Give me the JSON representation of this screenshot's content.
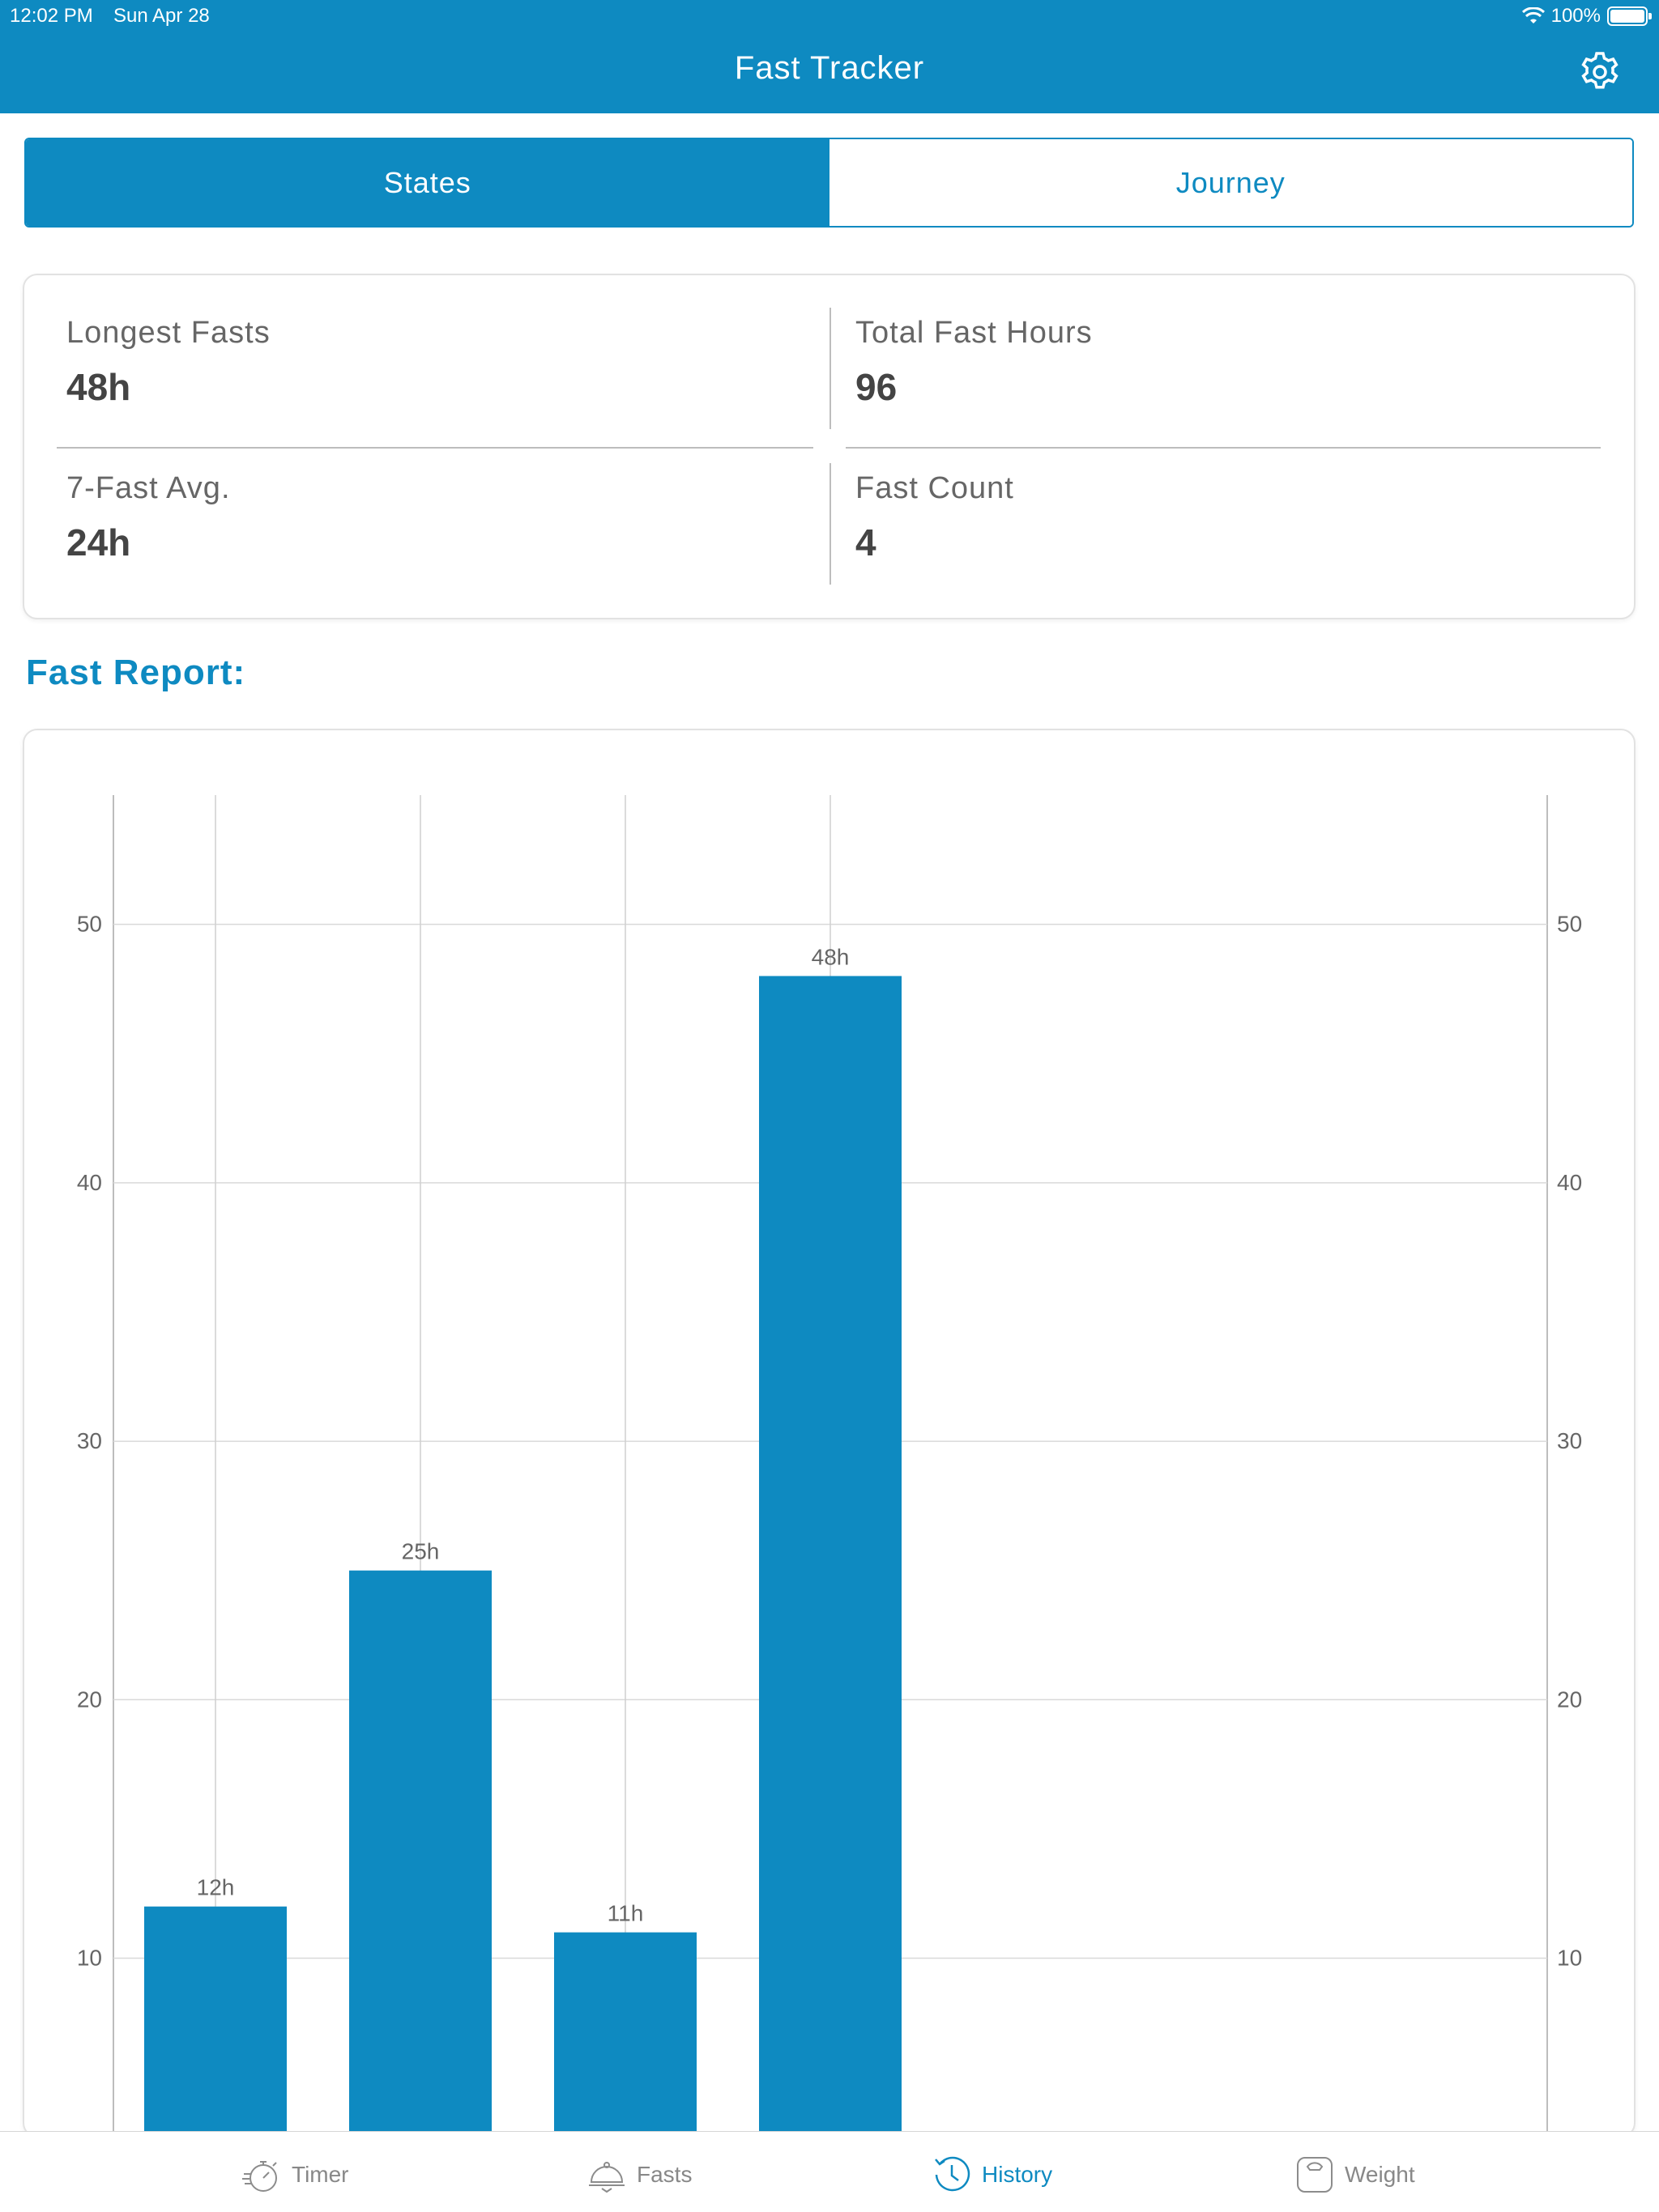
{
  "status_bar": {
    "time": "12:02 PM",
    "date": "Sun Apr 28",
    "battery": "100%"
  },
  "header": {
    "title": "Fast Tracker",
    "settings_icon": "gear-icon"
  },
  "segments": [
    {
      "label": "States",
      "active": true
    },
    {
      "label": "Journey",
      "active": false
    }
  ],
  "stats": {
    "longest_label": "Longest Fasts",
    "longest_value": "48h",
    "total_label": "Total Fast Hours",
    "total_value": "96",
    "avg_label": "7-Fast Avg.",
    "avg_value": "24h",
    "count_label": "Fast Count",
    "count_value": "4"
  },
  "section_title": "Fast Report:",
  "chart_data": {
    "type": "bar",
    "values": [
      12,
      25,
      11,
      48
    ],
    "data_labels": [
      "12h",
      "25h",
      "11h",
      "48h"
    ],
    "y_ticks": [
      10,
      20,
      30,
      40,
      50
    ],
    "ylim": [
      3,
      55
    ],
    "grid": true,
    "right_axis": true,
    "bar_color": "#0E8AC1"
  },
  "tabs": [
    {
      "label": "Timer",
      "icon": "stopwatch-icon"
    },
    {
      "label": "Fasts",
      "icon": "food-cloche-icon"
    },
    {
      "label": "History",
      "icon": "history-clock-icon",
      "active": true
    },
    {
      "label": "Weight",
      "icon": "scale-icon"
    }
  ],
  "colors": {
    "accent": "#0E8AC1"
  }
}
